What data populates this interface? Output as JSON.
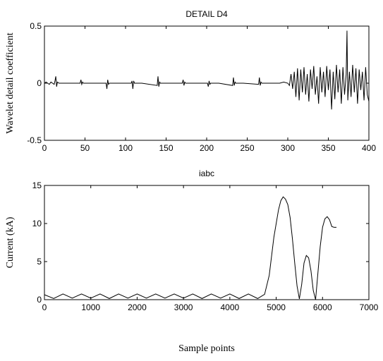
{
  "chart_data": [
    {
      "type": "line",
      "title": "DETAIL  D4",
      "xlabel": "",
      "ylabel": "Wavelet detail coefficient",
      "xlim": [
        0,
        400
      ],
      "ylim": [
        -0.5,
        0.5
      ],
      "xticks": [
        "0",
        "50",
        "100",
        "150",
        "200",
        "250",
        "300",
        "350",
        "400"
      ],
      "yticks": [
        "-0.5",
        "0",
        "0.5"
      ],
      "grid": false,
      "series": [
        {
          "x": [
            0,
            2,
            4,
            6,
            8,
            10,
            12,
            13,
            14,
            15,
            16,
            18,
            20,
            28,
            44,
            45,
            46,
            47,
            48,
            60,
            76,
            77,
            78,
            79,
            80,
            90,
            107,
            108,
            109,
            110,
            111,
            120,
            139,
            140,
            141,
            142,
            143,
            155,
            170,
            171,
            172,
            173,
            174,
            185,
            201,
            202,
            203,
            204,
            205,
            215,
            232,
            233,
            234,
            235,
            236,
            245,
            264,
            265,
            266,
            267,
            268,
            275,
            285,
            290,
            295,
            300,
            302,
            304,
            306,
            308,
            310,
            312,
            314,
            316,
            318,
            320,
            322,
            324,
            326,
            328,
            330,
            332,
            334,
            336,
            338,
            340,
            342,
            344,
            346,
            348,
            350,
            352,
            354,
            356,
            358,
            360,
            362,
            364,
            366,
            368,
            370,
            372,
            373,
            374,
            376,
            378,
            380,
            382,
            384,
            386,
            388,
            390,
            392,
            394,
            396,
            398,
            400
          ],
          "y": [
            0,
            0.01,
            0.0,
            -0.01,
            0.01,
            0.0,
            -0.01,
            0.02,
            0.06,
            -0.03,
            0.01,
            0.0,
            0.0,
            0.0,
            0.0,
            0.03,
            -0.01,
            0.01,
            0.0,
            0.0,
            0.0,
            -0.05,
            0.03,
            -0.01,
            0.0,
            0.0,
            0.0,
            0.02,
            -0.05,
            0.02,
            0.0,
            0.0,
            -0.02,
            0.06,
            -0.03,
            0.01,
            0.0,
            0.0,
            0.0,
            0.03,
            -0.02,
            0.01,
            0.0,
            0.0,
            0.0,
            -0.03,
            0.02,
            -0.01,
            0.0,
            0.0,
            -0.02,
            0.05,
            -0.02,
            0.01,
            0.0,
            0.0,
            -0.01,
            0.05,
            -0.02,
            0.01,
            0.0,
            0.0,
            0.0,
            0.0,
            0.01,
            0.0,
            -0.02,
            0.08,
            -0.05,
            0.1,
            -0.12,
            0.13,
            -0.15,
            0.12,
            -0.08,
            0.14,
            -0.1,
            0.08,
            -0.16,
            0.12,
            -0.05,
            0.15,
            -0.1,
            0.06,
            -0.18,
            0.14,
            -0.08,
            0.1,
            -0.12,
            0.15,
            -0.06,
            0.12,
            -0.23,
            0.1,
            -0.14,
            0.16,
            -0.08,
            0.12,
            -0.18,
            0.14,
            -0.1,
            0.08,
            0.46,
            -0.15,
            0.1,
            -0.12,
            0.16,
            -0.08,
            0.13,
            -0.18,
            0.12,
            -0.06,
            0.1,
            -0.15,
            0.14,
            -0.1,
            -0.16
          ]
        }
      ]
    },
    {
      "type": "line",
      "title": "iabc",
      "xlabel": "Sample points",
      "ylabel": "Current (kA)",
      "xlim": [
        0,
        7000
      ],
      "ylim": [
        0,
        15
      ],
      "xticks": [
        "0",
        "1000",
        "2000",
        "3000",
        "4000",
        "5000",
        "6000",
        "7000"
      ],
      "yticks": [
        "0",
        "5",
        "10",
        "15"
      ],
      "grid": false,
      "series": [
        {
          "x": [
            0,
            200,
            400,
            600,
            800,
            1000,
            1200,
            1400,
            1600,
            1800,
            2000,
            2200,
            2400,
            2600,
            2800,
            3000,
            3200,
            3400,
            3600,
            3800,
            4000,
            4200,
            4400,
            4600,
            4750,
            4850,
            4950,
            5050,
            5100,
            5150,
            5200,
            5250,
            5300,
            5350,
            5400,
            5450,
            5500,
            5550,
            5600,
            5650,
            5700,
            5750,
            5800,
            5850,
            5900,
            5950,
            6000,
            6050,
            6100,
            6150,
            6200,
            6250,
            6300
          ],
          "y": [
            0.65,
            0.15,
            0.75,
            0.2,
            0.75,
            0.2,
            0.75,
            0.15,
            0.75,
            0.2,
            0.75,
            0.2,
            0.75,
            0.2,
            0.75,
            0.2,
            0.75,
            0.15,
            0.75,
            0.2,
            0.75,
            0.15,
            0.75,
            0.15,
            0.7,
            3.2,
            8.2,
            11.8,
            13.0,
            13.5,
            13.2,
            12.5,
            10.8,
            8.0,
            4.8,
            1.8,
            0.1,
            2.0,
            4.8,
            5.8,
            5.5,
            3.8,
            1.2,
            0.0,
            3.5,
            7.0,
            9.5,
            10.6,
            10.9,
            10.5,
            9.6,
            9.5,
            9.5
          ]
        }
      ]
    }
  ]
}
